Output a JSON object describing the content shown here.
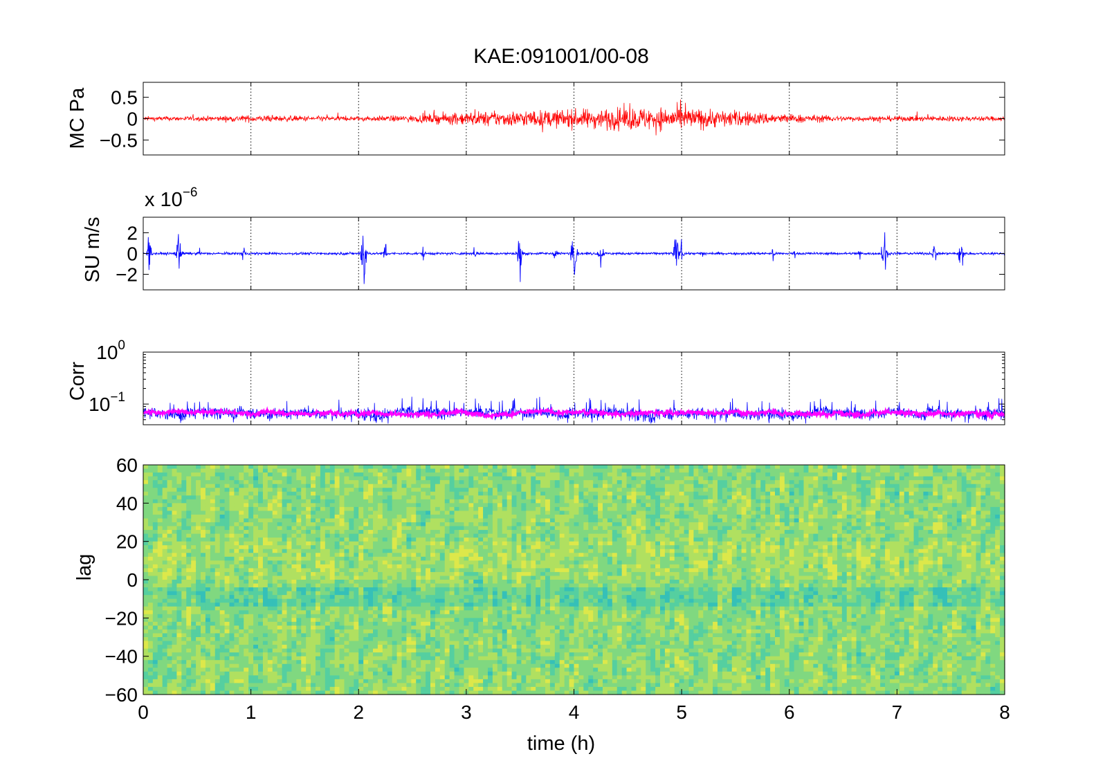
{
  "figure": {
    "title": "KAE:091001/00-08"
  },
  "chart_data": [
    {
      "type": "line",
      "panel": "MC",
      "ylabel": "MC Pa",
      "xlim": [
        0,
        8
      ],
      "ylim": [
        -0.85,
        0.85
      ],
      "yticks": [
        "0.5",
        "0",
        "−0.5"
      ],
      "ytick_values": [
        0.5,
        0,
        -0.5
      ],
      "grid": "vertical dotted",
      "series": [
        {
          "color": "#ff0000",
          "envelope_x": [
            0,
            0.5,
            1.0,
            1.5,
            2.0,
            2.5,
            3.0,
            3.5,
            4.0,
            4.5,
            5.0,
            5.5,
            6.0,
            6.5,
            7.0,
            7.5,
            8.0
          ],
          "envelope_amplitude": [
            0.1,
            0.1,
            0.15,
            0.12,
            0.1,
            0.15,
            0.3,
            0.35,
            0.4,
            0.5,
            0.5,
            0.35,
            0.2,
            0.12,
            0.12,
            0.12,
            0.1
          ]
        }
      ]
    },
    {
      "type": "line",
      "panel": "SU",
      "ylabel": "SU m/s",
      "scale_label": "x 10",
      "scale_exponent": "−6",
      "xlim": [
        0,
        8
      ],
      "ylim": [
        -3.5,
        3.5
      ],
      "yticks": [
        "2",
        "0",
        "−2"
      ],
      "ytick_values": [
        2,
        0,
        -2
      ],
      "grid": "vertical dotted",
      "series": [
        {
          "color": "#0000ff",
          "background_amplitude": 0.2,
          "bursts_x": [
            0.05,
            0.33,
            0.52,
            0.93,
            2.05,
            2.25,
            2.6,
            3.08,
            3.5,
            3.83,
            4.0,
            4.25,
            4.95,
            5.0,
            5.2,
            5.85,
            6.05,
            6.65,
            6.88,
            7.35,
            7.6
          ],
          "bursts_amplitude": [
            2.2,
            2.3,
            0.7,
            1.0,
            3.4,
            1.2,
            0.8,
            1.0,
            3.2,
            1.0,
            3.4,
            1.8,
            2.6,
            1.6,
            1.0,
            0.8,
            0.7,
            0.9,
            3.2,
            1.3,
            2.6
          ]
        }
      ]
    },
    {
      "type": "line",
      "panel": "Corr",
      "ylabel": "Corr",
      "yscale": "log",
      "xlim": [
        0,
        8
      ],
      "ylim": [
        0.04,
        1
      ],
      "yticks": [
        "10",
        "10"
      ],
      "ytick_exponents": [
        "0",
        "−1"
      ],
      "ytick_values": [
        1,
        0.1
      ],
      "grid": "vertical dotted",
      "series": [
        {
          "color": "#0000ff",
          "level": 0.068,
          "spread": 0.018
        },
        {
          "color": "#ff00ff",
          "level": 0.068,
          "spread": 0.006
        }
      ]
    },
    {
      "type": "heatmap",
      "panel": "lag",
      "ylabel": "lag",
      "xlabel": "time (h)",
      "xlim": [
        0,
        8
      ],
      "ylim": [
        -60,
        60
      ],
      "xticks": [
        "0",
        "1",
        "2",
        "3",
        "4",
        "5",
        "6",
        "7",
        "8"
      ],
      "xtick_values": [
        0,
        1,
        2,
        3,
        4,
        5,
        6,
        7,
        8
      ],
      "yticks": [
        "60",
        "40",
        "20",
        "0",
        "−20",
        "−40",
        "−60"
      ],
      "ytick_values": [
        60,
        40,
        20,
        0,
        -20,
        -40,
        -60
      ],
      "colormap": [
        "#35c0b8",
        "#55cfa0",
        "#80d880",
        "#b0e060",
        "#dde84a"
      ]
    }
  ]
}
